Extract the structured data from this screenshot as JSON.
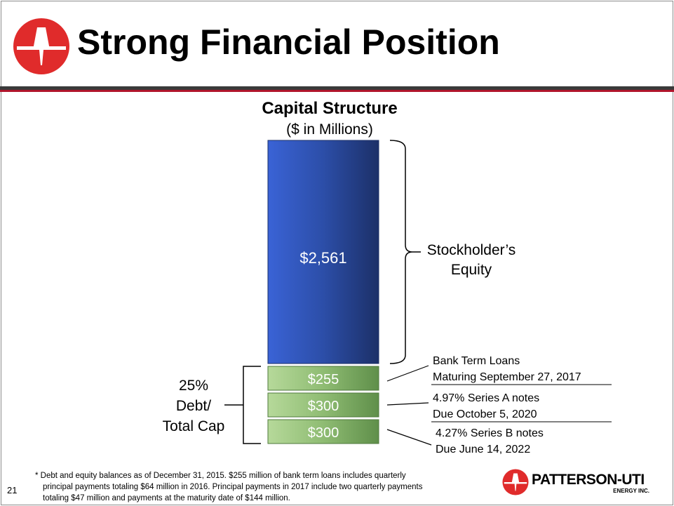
{
  "slide": {
    "title": "Strong Financial Position",
    "page_number": "21",
    "footnote_lines": [
      "* Debt and equity balances as of December 31, 2015.  $255 million of bank term loans includes quarterly",
      "principal payments totaling $64 million in 2016.  Principal payments in 2017 include two quarterly payments",
      "totaling $47 million and payments at the maturity date of $144 million."
    ],
    "brand": {
      "name": "PATTERSON-UTI",
      "sub": "ENERGY INC."
    }
  },
  "colors": {
    "brand_red": "#e02b2b",
    "equity_blue": "#2a4fa8",
    "debt_green": "#9cc47e",
    "title_rule_dark": "#3a3a3a",
    "title_rule_red": "#b0152b"
  },
  "chart_data": {
    "type": "bar",
    "stacked": true,
    "title": "Capital Structure",
    "subtitle": "($ in Millions)",
    "categories": [
      ""
    ],
    "series": [
      {
        "name": "4.27% Series B notes",
        "values": [
          300
        ],
        "label": "$300",
        "annotation": [
          "4.27% Series B notes",
          "Due June 14, 2022"
        ],
        "color": "#9cc47e"
      },
      {
        "name": "4.97% Series A notes",
        "values": [
          300
        ],
        "label": "$300",
        "annotation": [
          "4.97% Series A notes",
          "Due October 5, 2020"
        ],
        "color": "#9cc47e"
      },
      {
        "name": "Bank Term Loans",
        "values": [
          255
        ],
        "label": "$255",
        "annotation": [
          "Bank Term Loans",
          "Maturing September 27, 2017"
        ],
        "color": "#9cc47e"
      },
      {
        "name": "Stockholder’s Equity",
        "values": [
          2561
        ],
        "label": "$2,561",
        "annotation": [
          "Stockholder’s",
          "Equity"
        ],
        "color": "#2a4fa8"
      }
    ],
    "debt_bracket_lines": [
      "25%",
      "Debt/",
      "Total Cap"
    ],
    "debt_to_total_cap_pct": 25
  }
}
